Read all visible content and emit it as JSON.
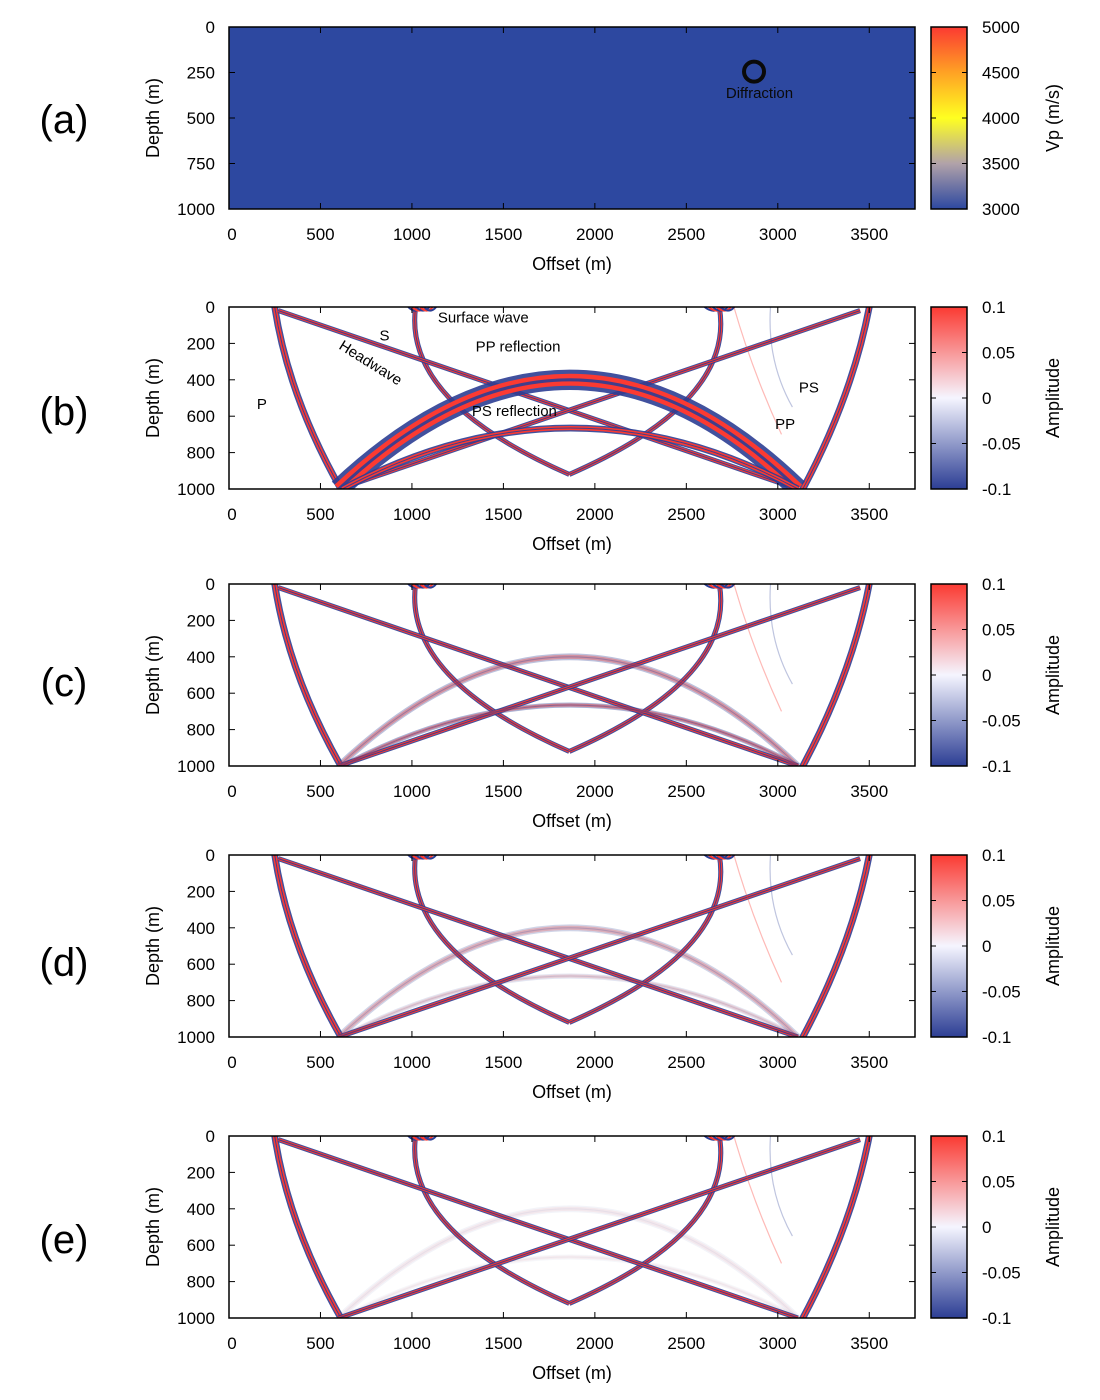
{
  "chart_data": [
    {
      "panel": "(a)",
      "type": "heatmap",
      "xlabel": "Offset (m)",
      "ylabel": "Depth (m)",
      "colorbar_label": "Vp (m/s)",
      "x_ticks": [
        0,
        500,
        1000,
        1500,
        2000,
        2500,
        3000,
        3500
      ],
      "y_ticks": [
        0,
        250,
        500,
        750,
        1000
      ],
      "colorbar_ticks": [
        5000,
        4500,
        4000,
        3500,
        3000
      ],
      "xlim": [
        0,
        3750
      ],
      "ylim": [
        0,
        1000
      ],
      "clim": [
        3000,
        5000
      ],
      "background_value": 3000,
      "colormap": [
        "#2d48a0",
        "#b1a2a9",
        "#ffff21",
        "#ffa224",
        "#fb3a32"
      ],
      "annotations": [
        {
          "text": "Diffraction",
          "x": 2900,
          "y": 390
        }
      ],
      "diffractor": {
        "x": 2870,
        "y": 245,
        "radius_m": 50
      }
    },
    {
      "panel": "(b)",
      "type": "heatmap",
      "xlabel": "Offset (m)",
      "ylabel": "Depth (m)",
      "colorbar_label": "Amplitude",
      "x_ticks": [
        0,
        500,
        1000,
        1500,
        2000,
        2500,
        3000,
        3500
      ],
      "y_ticks": [
        0,
        200,
        400,
        600,
        800,
        1000
      ],
      "colorbar_ticks": [
        "0.1",
        "0.05",
        "0",
        "-0.05",
        "-0.1"
      ],
      "xlim": [
        0,
        3750
      ],
      "ylim": [
        0,
        1000
      ],
      "clim": [
        -0.1,
        0.1
      ],
      "colormap": [
        "#2c3e94",
        "#f5f5ff",
        "#fb3a32"
      ],
      "annotations": [
        {
          "text": "Surface wave",
          "x": 1390,
          "y": 85
        },
        {
          "text": "S",
          "x": 850,
          "y": 185
        },
        {
          "text": "Headwave",
          "x": 760,
          "y": 330
        },
        {
          "text": "PP reflection",
          "x": 1580,
          "y": 245
        },
        {
          "text": "P",
          "x": 180,
          "y": 560
        },
        {
          "text": "PS reflection",
          "x": 1560,
          "y": 600
        },
        {
          "text": "PS",
          "x": 3170,
          "y": 470
        },
        {
          "text": "PP",
          "x": 3040,
          "y": 670
        }
      ]
    },
    {
      "panel": "(c)",
      "type": "heatmap",
      "xlabel": "Offset (m)",
      "ylabel": "Depth (m)",
      "colorbar_label": "Amplitude",
      "x_ticks": [
        0,
        500,
        1000,
        1500,
        2000,
        2500,
        3000,
        3500
      ],
      "y_ticks": [
        0,
        200,
        400,
        600,
        800,
        1000
      ],
      "colorbar_ticks": [
        "0.1",
        "0.05",
        "0",
        "-0.05",
        "-0.1"
      ],
      "xlim": [
        0,
        3750
      ],
      "ylim": [
        0,
        1000
      ],
      "clim": [
        -0.1,
        0.1
      ]
    },
    {
      "panel": "(d)",
      "type": "heatmap",
      "xlabel": "Offset (m)",
      "ylabel": "Depth (m)",
      "colorbar_label": "Amplitude",
      "x_ticks": [
        0,
        500,
        1000,
        1500,
        2000,
        2500,
        3000,
        3500
      ],
      "y_ticks": [
        0,
        200,
        400,
        600,
        800,
        1000
      ],
      "colorbar_ticks": [
        "0.1",
        "0.05",
        "0",
        "-0.05",
        "-0.1"
      ],
      "xlim": [
        0,
        3750
      ],
      "ylim": [
        0,
        1000
      ],
      "clim": [
        -0.1,
        0.1
      ]
    },
    {
      "panel": "(e)",
      "type": "heatmap",
      "xlabel": "Offset (m)",
      "ylabel": "Depth (m)",
      "colorbar_label": "Amplitude",
      "x_ticks": [
        0,
        500,
        1000,
        1500,
        2000,
        2500,
        3000,
        3500
      ],
      "y_ticks": [
        0,
        200,
        400,
        600,
        800,
        1000
      ],
      "colorbar_ticks": [
        "0.1",
        "0.05",
        "0",
        "-0.05",
        "-0.1"
      ],
      "xlim": [
        0,
        3750
      ],
      "ylim": [
        0,
        1000
      ],
      "clim": [
        -0.1,
        0.1
      ]
    }
  ]
}
